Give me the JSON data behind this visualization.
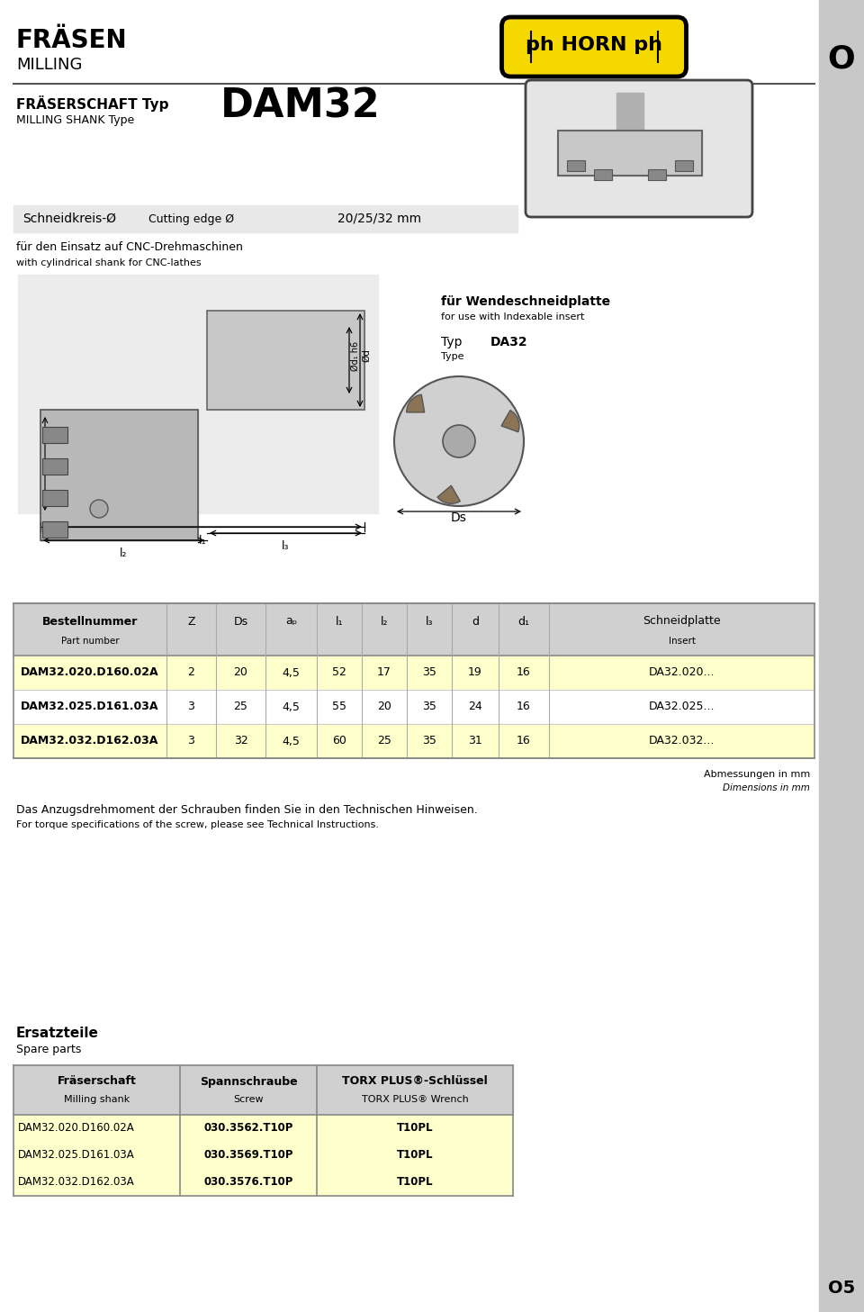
{
  "title_de": "FRÄSEN",
  "title_en": "MILLING",
  "section_label": "O",
  "page_label": "O5",
  "bg_color": "#ffffff",
  "sidebar_color": "#c8c8c8",
  "typ_label_de": "FRÄSERSCHAFT Typ",
  "typ_label_en": "MILLING SHANK Type",
  "typ_value": "DAM32",
  "cutting_edge_label_de": "Schneidkreis-Ø",
  "cutting_edge_label_en": "Cutting edge Ø",
  "cutting_edge_value": "20/25/32 mm",
  "cnc_text_de": "für den Einsatz auf CNC-Drehmaschinen",
  "cnc_text_en": "with cylindrical shank for CNC-lathes",
  "wendeplatte_de": "für Wendeschneidplatte",
  "wendeplatte_en": "for use with Indexable insert",
  "typ_label": "Typ",
  "type_label": "Type",
  "typ_da32": "DA32",
  "table_rows": [
    [
      "DAM32.020.D160.02A",
      "2",
      "20",
      "4,5",
      "52",
      "17",
      "35",
      "19",
      "16",
      "DA32.020..."
    ],
    [
      "DAM32.025.D161.03A",
      "3",
      "25",
      "4,5",
      "55",
      "20",
      "35",
      "24",
      "16",
      "DA32.025..."
    ],
    [
      "DAM32.032.D162.03A",
      "3",
      "32",
      "4,5",
      "60",
      "25",
      "35",
      "31",
      "16",
      "DA32.032..."
    ]
  ],
  "row_colors": [
    "#ffffcc",
    "#ffffff",
    "#ffffcc"
  ],
  "header_color": "#d0d0d0",
  "abmessungen_de": "Abmessungen in mm",
  "abmessungen_en": "Dimensions in mm",
  "anzug_de": "Das Anzugsdrehmoment der Schrauben finden Sie in den Technischen Hinweisen.",
  "anzug_en": "For torque specifications of the screw, please see Technical Instructions.",
  "ersatzteile_de": "Ersatzteile",
  "ersatzteile_en": "Spare parts",
  "spare_header_de": [
    "Fräserschaft",
    "Spannschraube",
    "TORX PLUS®-Schlüssel"
  ],
  "spare_header_en": [
    "Milling shank",
    "Screw",
    "TORX PLUS® Wrench"
  ],
  "spare_rows": [
    [
      "DAM32.020.D160.02A",
      "030.3562.T10P",
      "T10PL"
    ],
    [
      "DAM32.025.D161.03A",
      "030.3569.T10P",
      "T10PL"
    ],
    [
      "DAM32.032.D162.03A",
      "030.3576.T10P",
      "T10PL"
    ]
  ],
  "spare_row_color": "#ffffcc",
  "spare_header_color": "#d0d0d0",
  "horn_logo_yellow": "#f5d800",
  "horn_logo_black": "#000000"
}
